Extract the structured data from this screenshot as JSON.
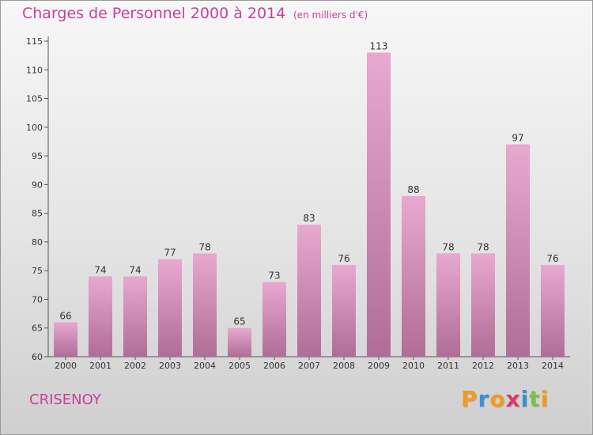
{
  "title": "Charges de Personnel 2000 à 2014",
  "subtitle": "(en milliers d'€)",
  "commune": "CRISENOY",
  "logo": {
    "letters": [
      "P",
      "r",
      "o",
      "x",
      "i",
      "t",
      "i"
    ],
    "colors": [
      "#f39a1c",
      "#3a8fd6",
      "#f39a1c",
      "#e1356b",
      "#3a8fd6",
      "#7cc043",
      "#f39a1c"
    ]
  },
  "colors": {
    "bar_top": "#e8a8cf",
    "bar_bottom": "#b06d96",
    "text_accent": "#c8409a"
  },
  "chart_data": {
    "type": "bar",
    "title": "Charges de Personnel 2000 à 2014",
    "subtitle": "(en milliers d'€)",
    "categories": [
      "2000",
      "2001",
      "2002",
      "2003",
      "2004",
      "2005",
      "2006",
      "2007",
      "2008",
      "2009",
      "2010",
      "2011",
      "2012",
      "2013",
      "2014"
    ],
    "values": [
      66,
      74,
      74,
      77,
      78,
      65,
      73,
      83,
      76,
      113,
      88,
      78,
      78,
      97,
      76
    ],
    "ylim": [
      60,
      115
    ],
    "yticks": [
      60,
      65,
      70,
      75,
      80,
      85,
      90,
      95,
      100,
      105,
      110,
      115
    ],
    "grid": false
  }
}
